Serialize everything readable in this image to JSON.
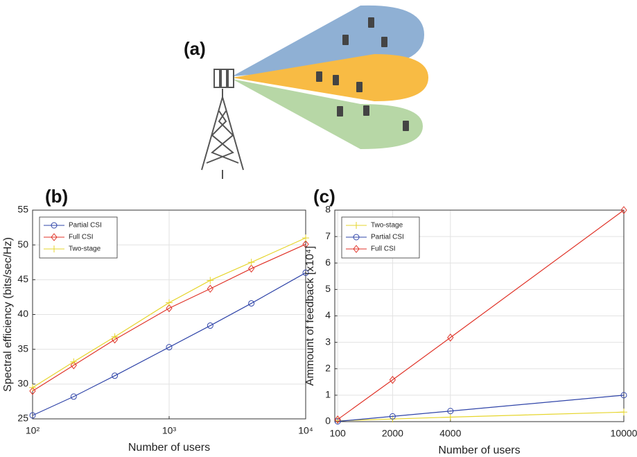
{
  "diagram": {
    "label": "(a)"
  },
  "chart_data": [
    {
      "type": "line",
      "panel_label": "(b)",
      "xlabel": "Number of users",
      "ylabel": "Spectral efficiency (bits/sec/Hz)",
      "xscale": "log",
      "grid": true,
      "legend": "upper-left",
      "x": [
        100,
        200,
        400,
        1000,
        2000,
        4000,
        10000
      ],
      "xlim": [
        100,
        10000
      ],
      "xticks": [
        {
          "value": 100,
          "label": "10²"
        },
        {
          "value": 1000,
          "label": "10³"
        },
        {
          "value": 10000,
          "label": "10⁴"
        }
      ],
      "ylim": [
        25,
        55
      ],
      "yticks": [
        25,
        30,
        35,
        40,
        45,
        50,
        55
      ],
      "series": [
        {
          "name": "Partial CSI",
          "color": "#2f44a8",
          "marker": "circle",
          "values": [
            25.5,
            28.2,
            31.2,
            35.3,
            38.4,
            41.6,
            46.0
          ]
        },
        {
          "name": "Full CSI",
          "color": "#e03328",
          "marker": "diamond",
          "values": [
            29.0,
            32.7,
            36.4,
            40.9,
            43.7,
            46.6,
            50.1
          ]
        },
        {
          "name": "Two-stage",
          "color": "#e6d52c",
          "marker": "plus",
          "values": [
            29.5,
            33.2,
            36.8,
            41.7,
            44.9,
            47.5,
            51.0
          ]
        }
      ]
    },
    {
      "type": "line",
      "panel_label": "(c)",
      "xlabel": "Number of users",
      "ylabel": "Ammount of feedback [x10⁴]",
      "xscale": "linear",
      "grid": true,
      "legend": "upper-left",
      "x": [
        100,
        2000,
        4000,
        10000
      ],
      "xlim": [
        0,
        10000
      ],
      "xticks": [
        100,
        2000,
        4000,
        10000
      ],
      "ylim": [
        0,
        8
      ],
      "yticks": [
        0,
        1,
        2,
        3,
        4,
        5,
        6,
        7,
        8
      ],
      "series": [
        {
          "name": "Two-stage",
          "color": "#e6d52c",
          "marker": "plus",
          "values": [
            0.03,
            0.1,
            0.17,
            0.36
          ]
        },
        {
          "name": "Partial CSI",
          "color": "#2f44a8",
          "marker": "circle",
          "values": [
            0.01,
            0.2,
            0.4,
            1.0
          ]
        },
        {
          "name": "Full CSI",
          "color": "#e03328",
          "marker": "diamond",
          "values": [
            0.08,
            1.58,
            3.18,
            8.0
          ]
        }
      ]
    }
  ]
}
